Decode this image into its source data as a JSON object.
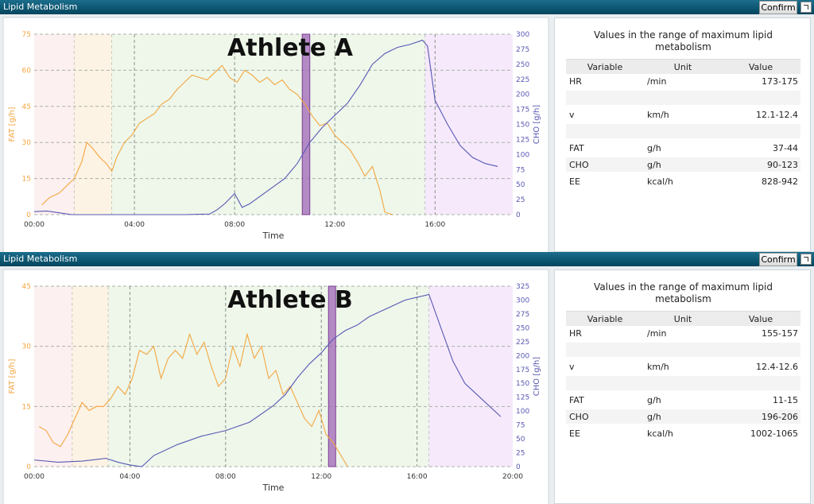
{
  "panels": [
    {
      "header_title": "Lipid Metabolism",
      "button": "Confirm",
      "table": {
        "title": "Values in the range of maximum lipid metabolism",
        "columns": [
          "Variable",
          "Unit",
          "Value"
        ],
        "rows": [
          [
            "HR",
            "/min",
            "173-175"
          ],
          [
            "v",
            "km/h",
            "12.1-12.4"
          ],
          [
            "FAT",
            "g/h",
            "37-44"
          ],
          [
            "CHO",
            "g/h",
            "90-123"
          ],
          [
            "EE",
            "kcal/h",
            "828-942"
          ]
        ]
      }
    },
    {
      "header_title": "Lipid Metabolism",
      "button": "Confirm",
      "table": {
        "title": "Values in the range of maximum lipid metabolism",
        "columns": [
          "Variable",
          "Unit",
          "Value"
        ],
        "rows": [
          [
            "HR",
            "/min",
            "155-157"
          ],
          [
            "v",
            "km/h",
            "12.4-12.6"
          ],
          [
            "FAT",
            "g/h",
            "11-15"
          ],
          [
            "CHO",
            "g/h",
            "196-206"
          ],
          [
            "EE",
            "kcal/h",
            "1002-1065"
          ]
        ]
      }
    }
  ],
  "chart_data": [
    {
      "type": "line",
      "title": "Athlete A",
      "x_label": "Time",
      "y_label": "FAT [g/h]",
      "y2_label": "CHO [g/h]",
      "grid": true,
      "xlim": [
        0,
        19.1
      ],
      "xticks": [
        {
          "value": 0,
          "label": "00:00"
        },
        {
          "value": 4,
          "label": "04:00"
        },
        {
          "value": 8,
          "label": "08:00"
        },
        {
          "value": 12,
          "label": "12:00"
        },
        {
          "value": 16,
          "label": "16:00"
        }
      ],
      "ylim": [
        0,
        75
      ],
      "yticks": [
        0,
        15,
        30,
        45,
        60,
        75
      ],
      "y2lim": [
        0,
        300
      ],
      "y2ticks": [
        0,
        25,
        50,
        75,
        100,
        125,
        150,
        175,
        200,
        225,
        250,
        275,
        300
      ],
      "zones": [
        {
          "from": 0,
          "to": 1.6,
          "color": "#fdf0f0"
        },
        {
          "from": 1.6,
          "to": 3.1,
          "color": "#fdf3e4"
        },
        {
          "from": 3.1,
          "to": 15.6,
          "color": "#eef7ea"
        },
        {
          "from": 15.6,
          "to": 19.1,
          "color": "#f6e9fb"
        }
      ],
      "highlight": {
        "from": 10.7,
        "to": 11.0,
        "color": "#a066b8"
      },
      "series": [
        {
          "color": "#f4a640",
          "x": [
            0.3,
            0.6,
            1.0,
            1.3,
            1.6,
            1.9,
            2.1,
            2.3,
            2.6,
            2.9,
            3.1,
            3.3,
            3.6,
            3.9,
            4.2,
            4.5,
            4.8,
            5.1,
            5.4,
            5.7,
            6.0,
            6.3,
            6.6,
            6.9,
            7.2,
            7.5,
            7.8,
            8.1,
            8.4,
            8.7,
            9.0,
            9.3,
            9.6,
            9.9,
            10.2,
            10.5,
            10.8,
            11.1,
            11.4,
            11.7,
            12.0,
            12.3,
            12.6,
            12.9,
            13.2,
            13.5,
            13.8,
            14.0,
            14.3
          ],
          "values": [
            4,
            7,
            9,
            12,
            15,
            22,
            30,
            28,
            24,
            21,
            18,
            24,
            30,
            33,
            38,
            40,
            42,
            46,
            48,
            52,
            55,
            58,
            57,
            56,
            59,
            62,
            57,
            55,
            60,
            58,
            55,
            57,
            54,
            56,
            52,
            50,
            46,
            41,
            37,
            38,
            33,
            30,
            27,
            22,
            16,
            20,
            10,
            1,
            0
          ]
        },
        {
          "color": "#5858b4",
          "axis": "y2",
          "x": [
            0,
            0.5,
            1.0,
            1.5,
            2.0,
            3.0,
            4.0,
            5.0,
            6.0,
            7.0,
            7.3,
            7.6,
            8.0,
            8.3,
            8.6,
            9.0,
            9.5,
            10.0,
            10.5,
            11.0,
            11.5,
            12.0,
            12.5,
            13.0,
            13.5,
            14.0,
            14.5,
            15.0,
            15.5,
            15.7,
            16.0,
            16.5,
            17.0,
            17.5,
            18.0,
            18.5
          ],
          "values": [
            5,
            6,
            3,
            0,
            0,
            0,
            0,
            0,
            0,
            1,
            8,
            18,
            35,
            12,
            18,
            30,
            45,
            60,
            85,
            120,
            145,
            165,
            185,
            215,
            250,
            268,
            278,
            283,
            290,
            280,
            190,
            150,
            115,
            95,
            85,
            80
          ]
        }
      ]
    },
    {
      "type": "line",
      "title": "Athlete B",
      "x_label": "Time",
      "y_label": "FAT [g/h]",
      "y2_label": "CHO [g/h]",
      "grid": true,
      "xlim": [
        0,
        20
      ],
      "xticks": [
        {
          "value": 0,
          "label": "00:00"
        },
        {
          "value": 4,
          "label": "04:00"
        },
        {
          "value": 8,
          "label": "08:00"
        },
        {
          "value": 12,
          "label": "12:00"
        },
        {
          "value": 16,
          "label": "16:00"
        },
        {
          "value": 20,
          "label": "20:00"
        }
      ],
      "ylim": [
        0,
        45
      ],
      "yticks": [
        0,
        15,
        30,
        45
      ],
      "y2lim": [
        0,
        325
      ],
      "y2ticks": [
        0,
        25,
        50,
        75,
        100,
        125,
        150,
        175,
        200,
        225,
        250,
        275,
        300,
        325
      ],
      "zones": [
        {
          "from": 0,
          "to": 1.6,
          "color": "#fdf0f0"
        },
        {
          "from": 1.6,
          "to": 3.1,
          "color": "#fdf3e4"
        },
        {
          "from": 3.1,
          "to": 16.5,
          "color": "#eef7ea"
        },
        {
          "from": 16.5,
          "to": 20,
          "color": "#f6e9fb"
        }
      ],
      "highlight": {
        "from": 12.3,
        "to": 12.6,
        "color": "#a066b8"
      },
      "series": [
        {
          "color": "#f4a640",
          "x": [
            0.2,
            0.5,
            0.8,
            1.1,
            1.4,
            1.7,
            2.0,
            2.3,
            2.6,
            2.9,
            3.2,
            3.5,
            3.8,
            4.1,
            4.4,
            4.7,
            5.0,
            5.3,
            5.6,
            5.9,
            6.2,
            6.5,
            6.8,
            7.1,
            7.4,
            7.7,
            8.0,
            8.3,
            8.6,
            8.9,
            9.2,
            9.5,
            9.8,
            10.1,
            10.4,
            10.7,
            11.0,
            11.3,
            11.6,
            11.9,
            12.2,
            12.5,
            12.8,
            13.1
          ],
          "values": [
            10,
            9,
            6,
            5,
            8,
            12,
            16,
            14,
            15,
            15,
            17,
            20,
            18,
            22,
            29,
            28,
            30,
            22,
            27,
            29,
            27,
            33,
            28,
            31,
            25,
            20,
            22,
            30,
            25,
            33,
            27,
            30,
            22,
            24,
            18,
            20,
            16,
            12,
            10,
            14,
            8,
            6,
            3,
            0
          ]
        },
        {
          "color": "#5858b4",
          "axis": "y2",
          "x": [
            0,
            1,
            2,
            3,
            3.5,
            4.0,
            4.5,
            5,
            6,
            7,
            8,
            9,
            10,
            10.5,
            11,
            11.5,
            12,
            12.5,
            13,
            13.5,
            14,
            14.5,
            15,
            15.5,
            16,
            16.5,
            17,
            17.5,
            18,
            18.5,
            19,
            19.5
          ],
          "values": [
            12,
            8,
            10,
            15,
            8,
            3,
            0,
            20,
            40,
            55,
            65,
            80,
            110,
            130,
            160,
            185,
            205,
            230,
            245,
            255,
            270,
            280,
            290,
            300,
            305,
            310,
            250,
            190,
            150,
            130,
            110,
            90
          ]
        }
      ]
    }
  ]
}
